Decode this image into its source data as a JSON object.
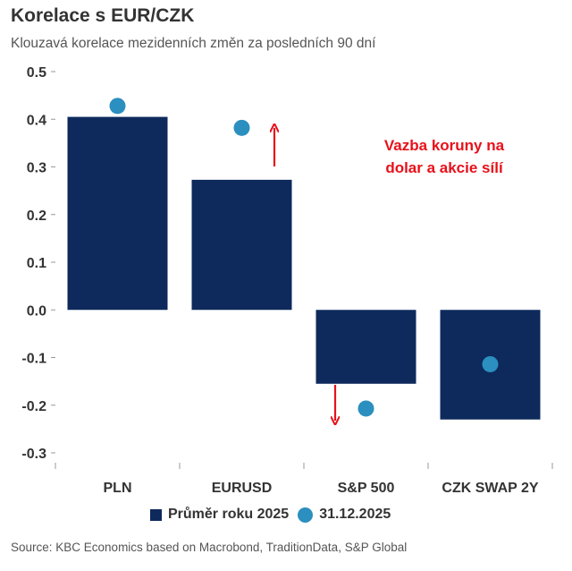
{
  "chart_data": {
    "type": "bar",
    "title": "Korelace s EUR/CZK",
    "subtitle": "Klouzavá korelace mezidenních změn za posledních 90 dní",
    "categories": [
      "PLN",
      "EURUSD",
      "S&P 500",
      "CZK SWAP 2Y"
    ],
    "series": [
      {
        "name": "Průměr roku 2025",
        "kind": "bar",
        "color": "#0e2a5c",
        "values": [
          0.405,
          0.273,
          -0.155,
          -0.23
        ]
      },
      {
        "name": "31.12.2025",
        "kind": "dot",
        "color": "#2b8fbf",
        "values": [
          0.428,
          0.382,
          -0.207,
          -0.114
        ]
      }
    ],
    "ylim": [
      -0.3,
      0.5
    ],
    "yticks": [
      "0.5",
      "0.4",
      "0.3",
      "0.2",
      "0.1",
      "0.0",
      "-0.1",
      "-0.2",
      "-0.3"
    ],
    "annotation": {
      "lines": [
        "Vazba koruny na",
        "dolar a akcie sílí"
      ],
      "color": "#e8101a"
    },
    "source": "Source: KBC Economics based on Macrobond, TraditionData, S&P Global"
  }
}
